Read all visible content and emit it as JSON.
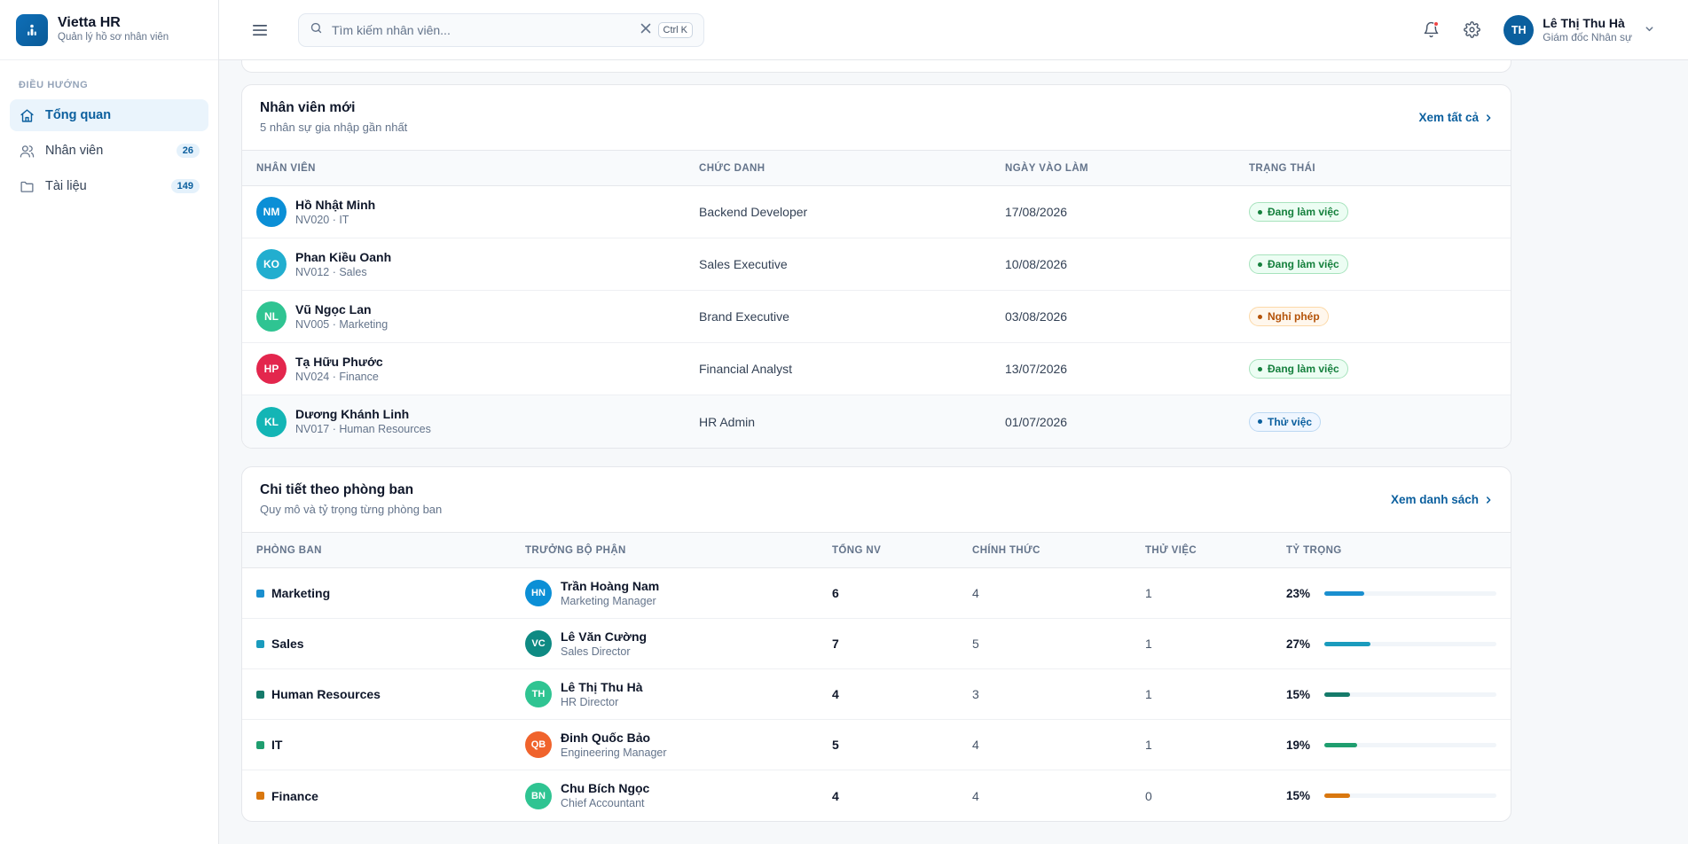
{
  "brand": {
    "title": "Vietta HR",
    "subtitle": "Quản lý hồ sơ nhân viên"
  },
  "sidebar": {
    "section_label": "ĐIỀU HƯỚNG",
    "items": [
      {
        "label": "Tổng quan",
        "icon": "home-icon",
        "active": true
      },
      {
        "label": "Nhân viên",
        "icon": "users-icon",
        "badge": "26"
      },
      {
        "label": "Tài liệu",
        "icon": "folder-icon",
        "badge": "149"
      }
    ]
  },
  "header": {
    "search_placeholder": "Tìm kiếm nhân viên...",
    "shortcut": "Ctrl K",
    "user": {
      "initials": "TH",
      "name": "Lê Thị Thu Hà",
      "role": "Giám đốc Nhân sự"
    }
  },
  "new_employees": {
    "title": "Nhân viên mới",
    "subtitle": "5 nhân sự gia nhập gần nhất",
    "link": "Xem tất cả",
    "columns": [
      "Nhân viên",
      "Chức danh",
      "Ngày vào làm",
      "Trạng thái"
    ],
    "rows": [
      {
        "initials": "NM",
        "name": "Hồ Nhật Minh",
        "meta": "NV020 · IT",
        "title": "Backend Developer",
        "date": "17/08/2026",
        "status": "Đang làm việc",
        "status_type": "green",
        "avatar_color": "#0b8fd6"
      },
      {
        "initials": "KO",
        "name": "Phan Kiều Oanh",
        "meta": "NV012 · Sales",
        "title": "Sales Executive",
        "date": "10/08/2026",
        "status": "Đang làm việc",
        "status_type": "green",
        "avatar_color": "#22aecf"
      },
      {
        "initials": "NL",
        "name": "Vũ Ngọc Lan",
        "meta": "NV005 · Marketing",
        "title": "Brand Executive",
        "date": "03/08/2026",
        "status": "Nghỉ phép",
        "status_type": "orange",
        "avatar_color": "#2fc492"
      },
      {
        "initials": "HP",
        "name": "Tạ Hữu Phước",
        "meta": "NV024 · Finance",
        "title": "Financial Analyst",
        "date": "13/07/2026",
        "status": "Đang làm việc",
        "status_type": "green",
        "avatar_color": "#e3264d"
      },
      {
        "initials": "KL",
        "name": "Dương Khánh Linh",
        "meta": "NV017 · Human Resources",
        "title": "HR Admin",
        "date": "01/07/2026",
        "status": "Thử việc",
        "status_type": "blue",
        "avatar_color": "#13b5b5"
      }
    ]
  },
  "departments": {
    "title": "Chi tiết theo phòng ban",
    "subtitle": "Quy mô và tỷ trọng từng phòng ban",
    "link": "Xem danh sách",
    "columns": [
      "Phòng ban",
      "Trưởng bộ phận",
      "Tổng NV",
      "Chính thức",
      "Thử việc",
      "Tỷ trọng"
    ],
    "rows": [
      {
        "name": "Marketing",
        "color": "#1a8fcf",
        "head_initials": "HN",
        "head_name": "Trần Hoàng Nam",
        "head_title": "Marketing Manager",
        "head_color": "#0b8fd6",
        "total": "6",
        "official": "4",
        "probation": "1",
        "ratio_label": "23%",
        "ratio": 0.23
      },
      {
        "name": "Sales",
        "color": "#1a9bbd",
        "head_initials": "VC",
        "head_name": "Lê Văn Cường",
        "head_title": "Sales Director",
        "head_color": "#0e8a83",
        "total": "7",
        "official": "5",
        "probation": "1",
        "ratio_label": "27%",
        "ratio": 0.27
      },
      {
        "name": "Human Resources",
        "color": "#157a6a",
        "head_initials": "TH",
        "head_name": "Lê Thị Thu Hà",
        "head_title": "HR Director",
        "head_color": "#2fc492",
        "total": "4",
        "official": "3",
        "probation": "1",
        "ratio_label": "15%",
        "ratio": 0.15
      },
      {
        "name": "IT",
        "color": "#1f9e6f",
        "head_initials": "QB",
        "head_name": "Đinh Quốc Bảo",
        "head_title": "Engineering Manager",
        "head_color": "#f0632c",
        "total": "5",
        "official": "4",
        "probation": "1",
        "ratio_label": "19%",
        "ratio": 0.19
      },
      {
        "name": "Finance",
        "color": "#d9770f",
        "head_initials": "BN",
        "head_name": "Chu Bích Ngọc",
        "head_title": "Chief Accountant",
        "head_color": "#2fc492",
        "total": "4",
        "official": "4",
        "probation": "0",
        "ratio_label": "15%",
        "ratio": 0.15
      }
    ]
  },
  "colors": {
    "accent": "#0b5f9e",
    "status_green": "#15803d",
    "status_orange": "#b45309"
  }
}
